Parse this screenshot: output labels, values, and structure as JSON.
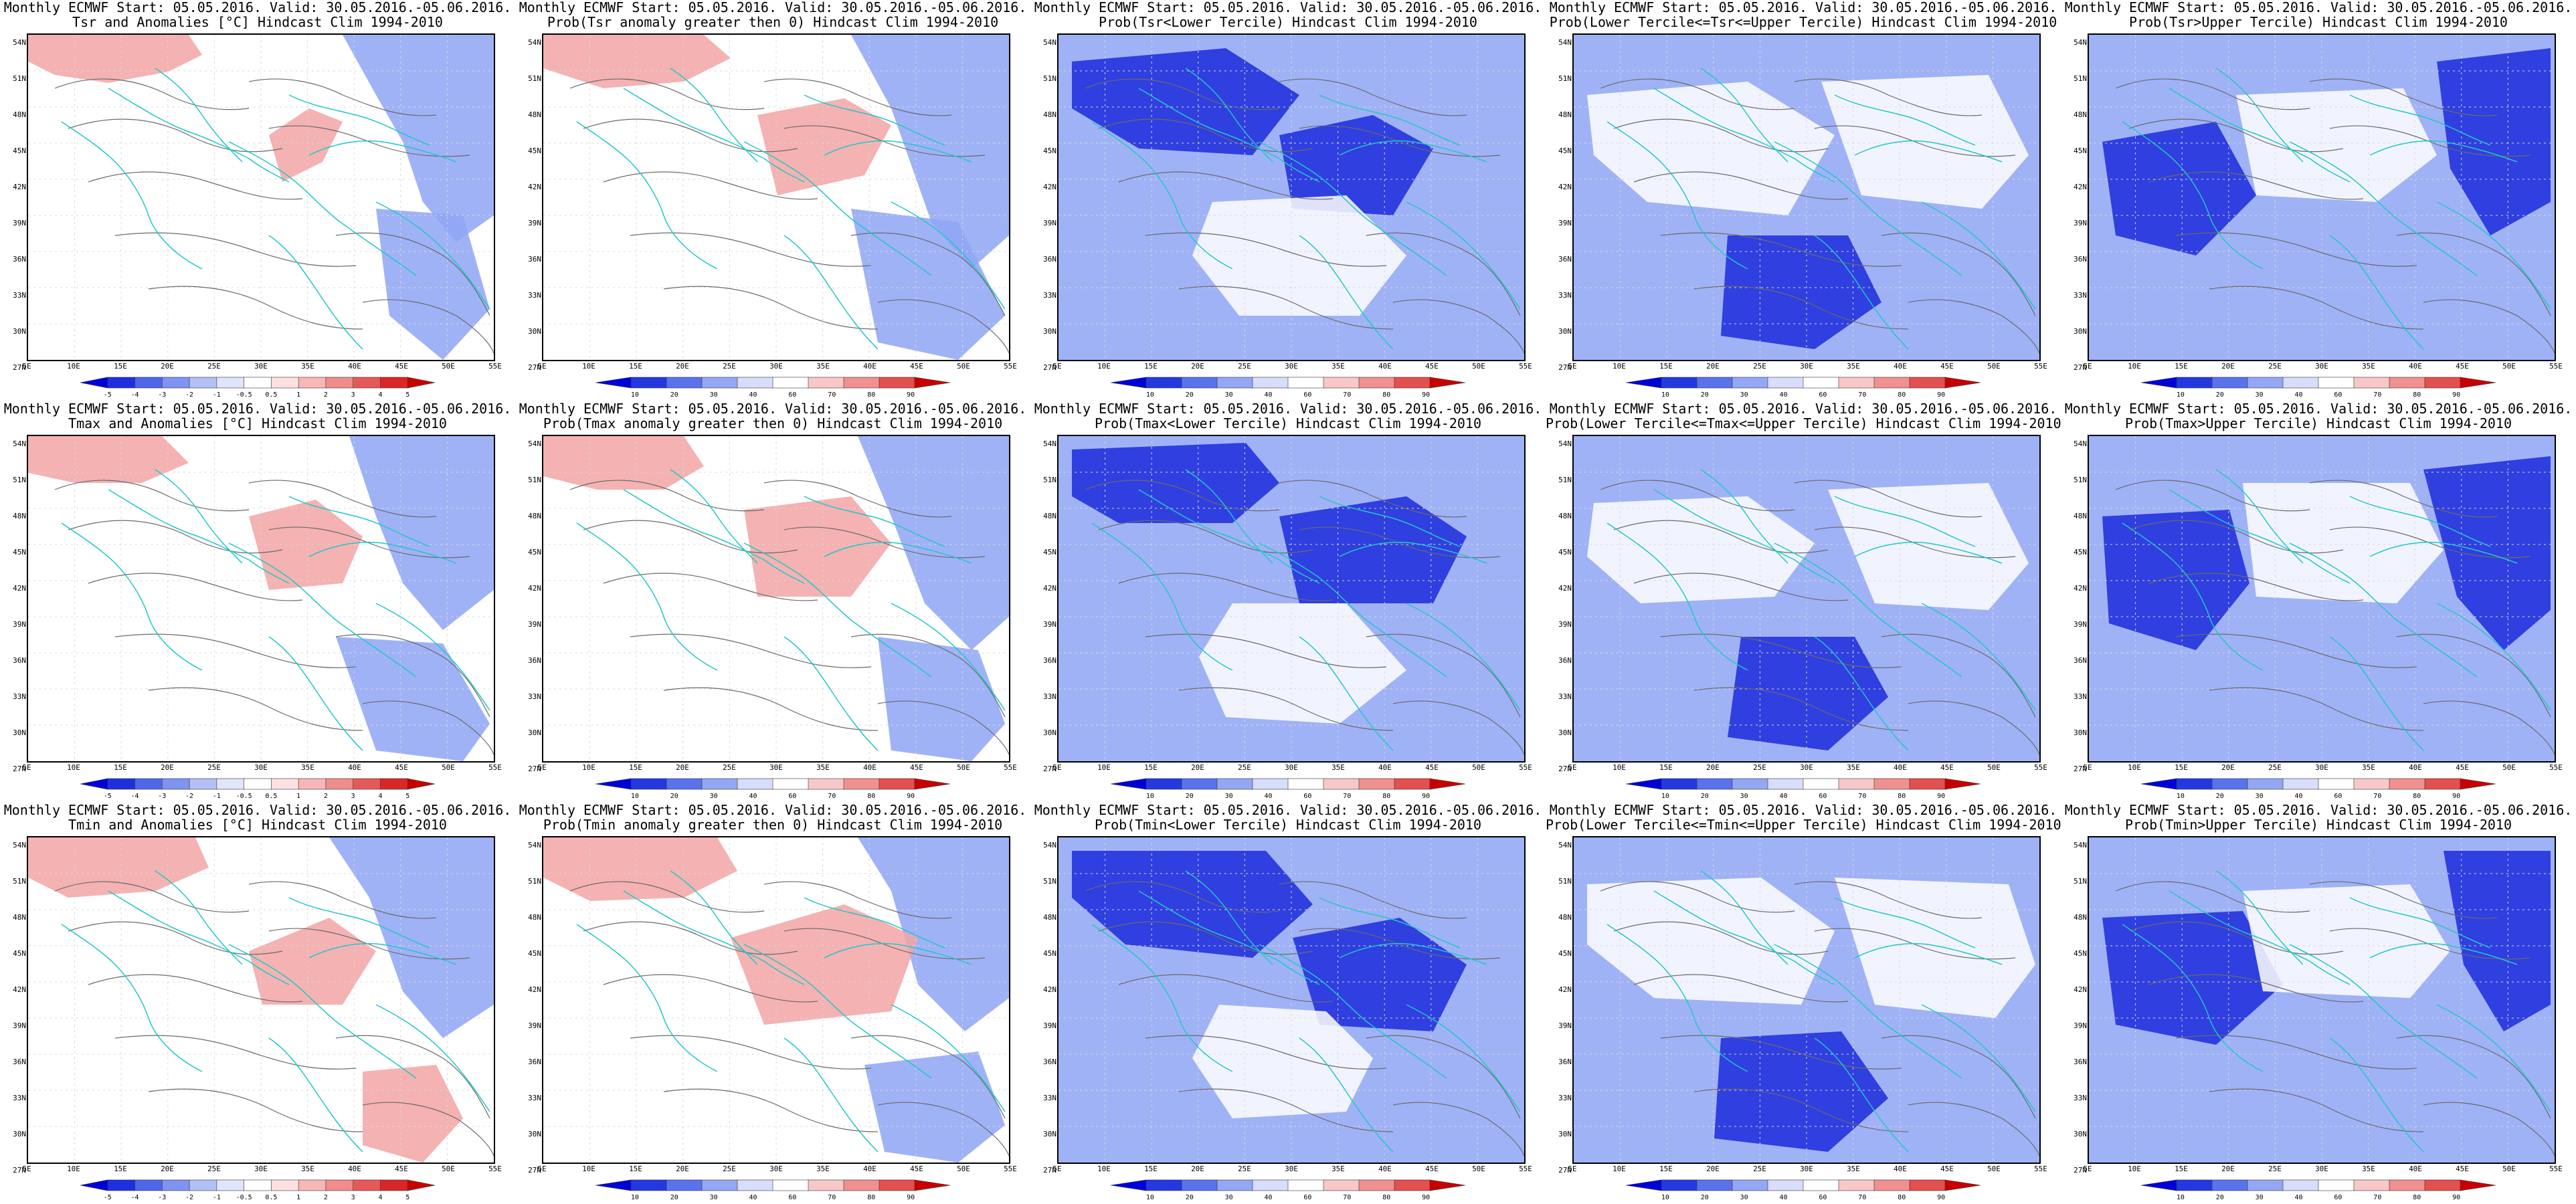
{
  "panels": [
    {
      "title_line1": "Monthly ECMWF Start: 05.05.2016. Valid: 30.05.2016.-05.06.2016.",
      "title_line2": "Tsr and Anomalies [°C] Hindcast Clim 1994-2010",
      "variable": "Tsr",
      "product": "anomaly",
      "colorbar_type": "anomaly"
    },
    {
      "title_line1": "Monthly ECMWF Start: 05.05.2016. Valid: 30.05.2016.-05.06.2016.",
      "title_line2": "Prob(Tsr anomaly greater then 0) Hindcast Clim 1994-2010",
      "variable": "Tsr",
      "product": "prob_positive",
      "colorbar_type": "probability"
    },
    {
      "title_line1": "Monthly ECMWF Start: 05.05.2016. Valid: 30.05.2016.-05.06.2016.",
      "title_line2": "Prob(Tsr<Lower Tercile) Hindcast Clim 1994-2010",
      "variable": "Tsr",
      "product": "prob_lower",
      "colorbar_type": "probability"
    },
    {
      "title_line1": "Monthly ECMWF Start: 05.05.2016. Valid: 30.05.2016.-05.06.2016.",
      "title_line2": "Prob(Lower Tercile<=Tsr<=Upper Tercile) Hindcast Clim 1994-2010",
      "variable": "Tsr",
      "product": "prob_middle",
      "colorbar_type": "probability"
    },
    {
      "title_line1": "Monthly ECMWF Start: 05.05.2016. Valid: 30.05.2016.-05.06.2016.",
      "title_line2": "Prob(Tsr>Upper Tercile) Hindcast Clim 1994-2010",
      "variable": "Tsr",
      "product": "prob_upper",
      "colorbar_type": "probability"
    },
    {
      "title_line1": "Monthly ECMWF Start: 05.05.2016. Valid: 30.05.2016.-05.06.2016.",
      "title_line2": "Tmax and Anomalies [°C] Hindcast Clim 1994-2010",
      "variable": "Tmax",
      "product": "anomaly",
      "colorbar_type": "anomaly"
    },
    {
      "title_line1": "Monthly ECMWF Start: 05.05.2016. Valid: 30.05.2016.-05.06.2016.",
      "title_line2": "Prob(Tmax anomaly greater then 0) Hindcast Clim 1994-2010",
      "variable": "Tmax",
      "product": "prob_positive",
      "colorbar_type": "probability"
    },
    {
      "title_line1": "Monthly ECMWF Start: 05.05.2016. Valid: 30.05.2016.-05.06.2016.",
      "title_line2": "Prob(Tmax<Lower Tercile) Hindcast Clim 1994-2010",
      "variable": "Tmax",
      "product": "prob_lower",
      "colorbar_type": "probability"
    },
    {
      "title_line1": "Monthly ECMWF Start: 05.05.2016. Valid: 30.05.2016.-05.06.2016.",
      "title_line2": "Prob(Lower Tercile<=Tmax<=Upper Tercile) Hindcast Clim 1994-2010",
      "variable": "Tmax",
      "product": "prob_middle",
      "colorbar_type": "probability"
    },
    {
      "title_line1": "Monthly ECMWF Start: 05.05.2016. Valid: 30.05.2016.-05.06.2016.",
      "title_line2": "Prob(Tmax>Upper Tercile) Hindcast Clim 1994-2010",
      "variable": "Tmax",
      "product": "prob_upper",
      "colorbar_type": "probability"
    },
    {
      "title_line1": "Monthly ECMWF Start: 05.05.2016. Valid: 30.05.2016.-05.06.2016.",
      "title_line2": "Tmin and Anomalies [°C] Hindcast Clim 1994-2010",
      "variable": "Tmin",
      "product": "anomaly",
      "colorbar_type": "anomaly"
    },
    {
      "title_line1": "Monthly ECMWF Start: 05.05.2016. Valid: 30.05.2016.-05.06.2016.",
      "title_line2": "Prob(Tmin anomaly greater then 0) Hindcast Clim 1994-2010",
      "variable": "Tmin",
      "product": "prob_positive",
      "colorbar_type": "probability"
    },
    {
      "title_line1": "Monthly ECMWF Start: 05.05.2016. Valid: 30.05.2016.-05.06.2016.",
      "title_line2": "Prob(Tmin<Lower Tercile) Hindcast Clim 1994-2010",
      "variable": "Tmin",
      "product": "prob_lower",
      "colorbar_type": "probability"
    },
    {
      "title_line1": "Monthly ECMWF Start: 05.05.2016. Valid: 30.05.2016.-05.06.2016.",
      "title_line2": "Prob(Lower Tercile<=Tmin<=Upper Tercile) Hindcast Clim 1994-2010",
      "variable": "Tmin",
      "product": "prob_middle",
      "colorbar_type": "probability"
    },
    {
      "title_line1": "Monthly ECMWF Start: 05.05.2016. Valid: 30.05.2016.-05.06.2016.",
      "title_line2": "Prob(Tmin>Upper Tercile) Hindcast Clim 1994-2010",
      "variable": "Tmin",
      "product": "prob_upper",
      "colorbar_type": "probability"
    }
  ],
  "lat_labels": [
    "54N",
    "51N",
    "48N",
    "45N",
    "42N",
    "39N",
    "36N",
    "33N",
    "30N",
    "27N"
  ],
  "lon_labels": [
    "5E",
    "10E",
    "15E",
    "20E",
    "25E",
    "30E",
    "35E",
    "40E",
    "45E",
    "50E",
    "55E"
  ],
  "colorbars": {
    "anomaly": {
      "labels": [
        "-5",
        "-4",
        "-3",
        "-2",
        "-1",
        "-0.5",
        "0.5",
        "1",
        "2",
        "3",
        "4",
        "5"
      ],
      "colors": [
        "#0000d8",
        "#1f2fe0",
        "#4f66ea",
        "#7f93f0",
        "#b3c0f6",
        "#dfe5fb",
        "#ffffff",
        "#fde0e0",
        "#f8b7b7",
        "#f08c8c",
        "#e65959",
        "#d92727",
        "#c80000"
      ]
    },
    "probability": {
      "labels": [
        "10",
        "20",
        "30",
        "40",
        "60",
        "70",
        "80",
        "90"
      ],
      "colors": [
        "#0000d8",
        "#2438e2",
        "#5a72ec",
        "#94a7f4",
        "#d7ddfa",
        "#ffffff",
        "#f8c8c8",
        "#f09090",
        "#e44f4f",
        "#c80000"
      ]
    }
  },
  "map_style": {
    "coast_color": "#20c7c7",
    "contour_color": "#6a6a6a",
    "grid_color": "#d8d8d8",
    "blue_main": "#8fa4f4",
    "blue_dark": "#2a39dd",
    "red_main": "#f2a5a5",
    "red_dark": "#df3d3d"
  }
}
